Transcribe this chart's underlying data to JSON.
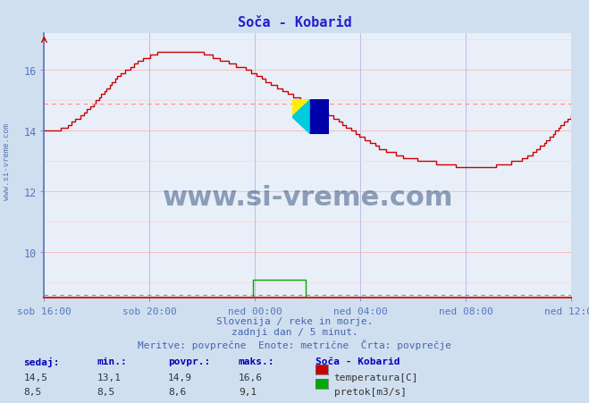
{
  "title": "Soča - Kobarid",
  "bg_color": "#d0dff0",
  "plot_bg_color": "#e8eff8",
  "x_labels": [
    "sob 16:00",
    "sob 20:00",
    "ned 00:00",
    "ned 04:00",
    "ned 08:00",
    "ned 12:00"
  ],
  "x_ticks_norm": [
    0.0,
    0.2,
    0.4,
    0.6,
    0.8,
    1.0
  ],
  "total_points": 289,
  "ylim": [
    8.5,
    17.2
  ],
  "yticks": [
    10,
    12,
    14,
    16
  ],
  "avg_temp": 14.9,
  "temp_color": "#cc0000",
  "flow_color": "#00aa00",
  "avg_temp_line_color": "#ff8888",
  "avg_flow_line_color": "#88cc88",
  "watermark_text": "www.si-vreme.com",
  "watermark_color": "#1a3a6a",
  "footer_line1": "Slovenija / reke in morje.",
  "footer_line2": "zadnji dan / 5 minut.",
  "footer_line3": "Meritve: povprečne  Enote: metrične  Črta: povprečje",
  "footer_color": "#4466aa",
  "stats_labels": [
    "sedaj:",
    "min.:",
    "povpr.:",
    "maks.:"
  ],
  "stats_temp": [
    "14,5",
    "13,1",
    "14,9",
    "16,6"
  ],
  "stats_flow": [
    "8,5",
    "8,5",
    "8,6",
    "9,1"
  ],
  "legend_title": "Soča - Kobarid",
  "legend_temp": "temperatura[C]",
  "legend_flow": "pretok[m3/s]",
  "sidebar_text": "www.si-vreme.com",
  "axis_color": "#5577bb",
  "grid_v_color": "#aaaadd",
  "grid_h_color": "#ffaaaa",
  "title_color": "#2222cc"
}
